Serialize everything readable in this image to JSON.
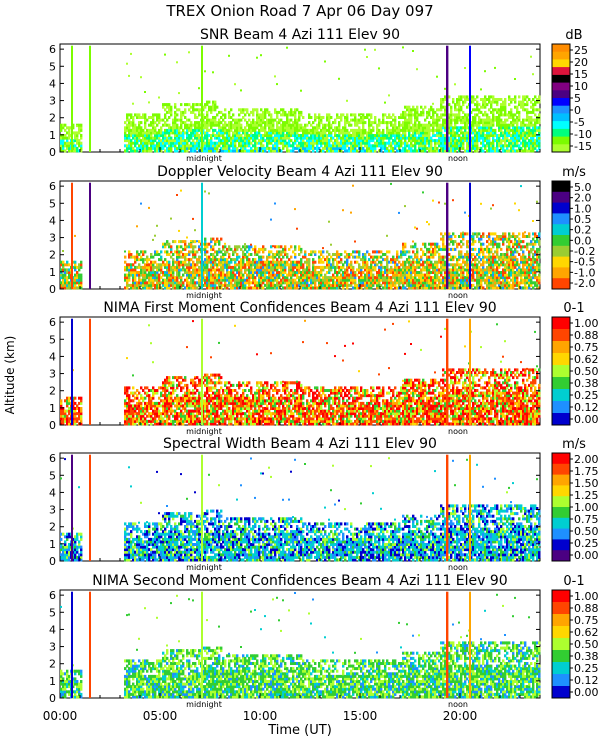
{
  "figure": {
    "title": "TREX Onion Road    7 Apr 06 Day 097",
    "ylabel": "Altitude (km)",
    "xlabel": "Time (UT)",
    "x_ticks": [
      "00:00",
      "05:00",
      "10:00",
      "15:00",
      "20:00"
    ],
    "marker_midnight": "midnight",
    "marker_noon": "noon"
  },
  "chart_data": [
    {
      "type": "heatmap",
      "title": "SNR Beam 4 Azi 111 Elev 90",
      "unit": "dB",
      "colorbar_ticks": [
        "25",
        "20",
        "15",
        "10",
        "5",
        "0",
        "-5",
        "-10",
        "-15"
      ],
      "colorbar_colors": [
        "#ff8c00",
        "#ffa500",
        "#ffd700",
        "#dc143c",
        "#000000",
        "#800080",
        "#4b0082",
        "#0000ff",
        "#1e90ff",
        "#00bfff",
        "#00ffff",
        "#00ff7f",
        "#7cfc00",
        "#adff2f"
      ],
      "y_ticks": [
        "0",
        "1",
        "2",
        "3",
        "4",
        "5",
        "6"
      ],
      "palette_key": "snr",
      "xlim_hours": [
        0,
        24
      ],
      "ylim_km": [
        0,
        6.3
      ]
    },
    {
      "type": "heatmap",
      "title": "Doppler Velocity Beam 4 Azi 111 Elev 90",
      "unit": "m/s",
      "colorbar_ticks": [
        "5.0",
        "2.0",
        "1.0",
        "0.5",
        "0.2",
        "0.0",
        "-0.2",
        "-0.5",
        "-1.0",
        "-2.0"
      ],
      "colorbar_colors": [
        "#000000",
        "#4b0082",
        "#0000cd",
        "#1e90ff",
        "#00ced1",
        "#32cd32",
        "#9acd32",
        "#ffd700",
        "#ffa500",
        "#ff4500"
      ],
      "y_ticks": [
        "0",
        "1",
        "2",
        "3",
        "4",
        "5",
        "6"
      ],
      "palette_key": "doppler",
      "xlim_hours": [
        0,
        24
      ],
      "ylim_km": [
        0,
        6.3
      ]
    },
    {
      "type": "heatmap",
      "title": "NIMA First Moment Confidences Beam 4 Azi 111 Elev 90",
      "unit": "0-1",
      "colorbar_ticks": [
        "1.00",
        "0.88",
        "0.75",
        "0.62",
        "0.50",
        "0.38",
        "0.25",
        "0.12",
        "0.00"
      ],
      "colorbar_colors": [
        "#ff0000",
        "#ff4500",
        "#ffa500",
        "#ffd700",
        "#adff2f",
        "#32cd32",
        "#00ced1",
        "#1e90ff",
        "#0000cd"
      ],
      "y_ticks": [
        "0",
        "1",
        "2",
        "3",
        "4",
        "5",
        "6"
      ],
      "palette_key": "conf1",
      "xlim_hours": [
        0,
        24
      ],
      "ylim_km": [
        0,
        6.3
      ]
    },
    {
      "type": "heatmap",
      "title": "Spectral Width Beam 4 Azi 111 Elev 90",
      "unit": "m/s",
      "colorbar_ticks": [
        "2.00",
        "1.75",
        "1.50",
        "1.25",
        "1.00",
        "0.75",
        "0.50",
        "0.25",
        "0.00"
      ],
      "colorbar_colors": [
        "#ff0000",
        "#ff4500",
        "#ffa500",
        "#ffd700",
        "#adff2f",
        "#32cd32",
        "#00ced1",
        "#1e90ff",
        "#0000cd",
        "#4b0082"
      ],
      "y_ticks": [
        "0",
        "1",
        "2",
        "3",
        "4",
        "5",
        "6"
      ],
      "palette_key": "width",
      "xlim_hours": [
        0,
        24
      ],
      "ylim_km": [
        0,
        6.3
      ]
    },
    {
      "type": "heatmap",
      "title": "NIMA Second Moment Confidences Beam 4 Azi 111 Elev 90",
      "unit": "0-1",
      "colorbar_ticks": [
        "1.00",
        "0.88",
        "0.75",
        "0.62",
        "0.50",
        "0.38",
        "0.25",
        "0.12",
        "0.00"
      ],
      "colorbar_colors": [
        "#ff0000",
        "#ff4500",
        "#ffa500",
        "#ffd700",
        "#adff2f",
        "#32cd32",
        "#00ced1",
        "#1e90ff",
        "#0000cd"
      ],
      "y_ticks": [
        "0",
        "1",
        "2",
        "3",
        "4",
        "5",
        "6"
      ],
      "palette_key": "conf2",
      "xlim_hours": [
        0,
        24
      ],
      "ylim_km": [
        0,
        6.3
      ]
    }
  ]
}
